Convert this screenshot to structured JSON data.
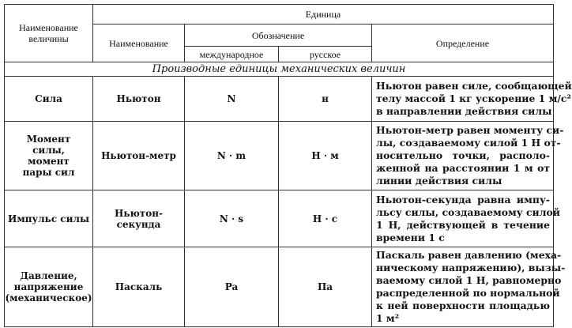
{
  "header": {
    "quantity_name": "Наименование величины",
    "unit": "Единица",
    "unit_name": "Наименование",
    "designation": "Обозначение",
    "international": "международное",
    "russian": "русское",
    "definition": "Определение"
  },
  "section_title": "Производные единицы механических величин",
  "rows": [
    {
      "quantity": "Сила",
      "unit_name": "Ньютон",
      "intl": "N",
      "rus": "н",
      "definition_lines": [
        "Ньютон равен силе, сообщающей",
        "телу массой 1 кг ускорение 1 м/с²",
        "в направлении действия силы"
      ]
    },
    {
      "quantity": "Момент силы, момент пары сил",
      "unit_name": "Ньютон-метр",
      "intl": "N · m",
      "rus": "Н · м",
      "definition_lines": [
        "Ньютон-метр равен моменту си-",
        "лы, создаваемому силой 1 Н от-",
        "носительно точки, располо-",
        "женной на расстоянии 1 м от",
        "линии действия силы"
      ]
    },
    {
      "quantity": "Импульс силы",
      "unit_name": "Ньютон-секунда",
      "intl": "N · s",
      "rus": "Н · с",
      "definition_lines": [
        "Ньютон-секунда равна импу-",
        "льсу силы, создаваемому силой",
        "1 Н, действующей в течение",
        "времени 1 с"
      ]
    },
    {
      "quantity": "Давление, напряжение (механическое)",
      "unit_name": "Паскаль",
      "intl": "Pa",
      "rus": "Па",
      "definition_lines": [
        "Паскаль равен давлению (меха-",
        "ническому напряжению), вызы-",
        "ваемому силой 1 Н, равномерно",
        "распределенной по нормальной",
        "к ней поверхности площадью",
        "1 м²"
      ]
    }
  ]
}
